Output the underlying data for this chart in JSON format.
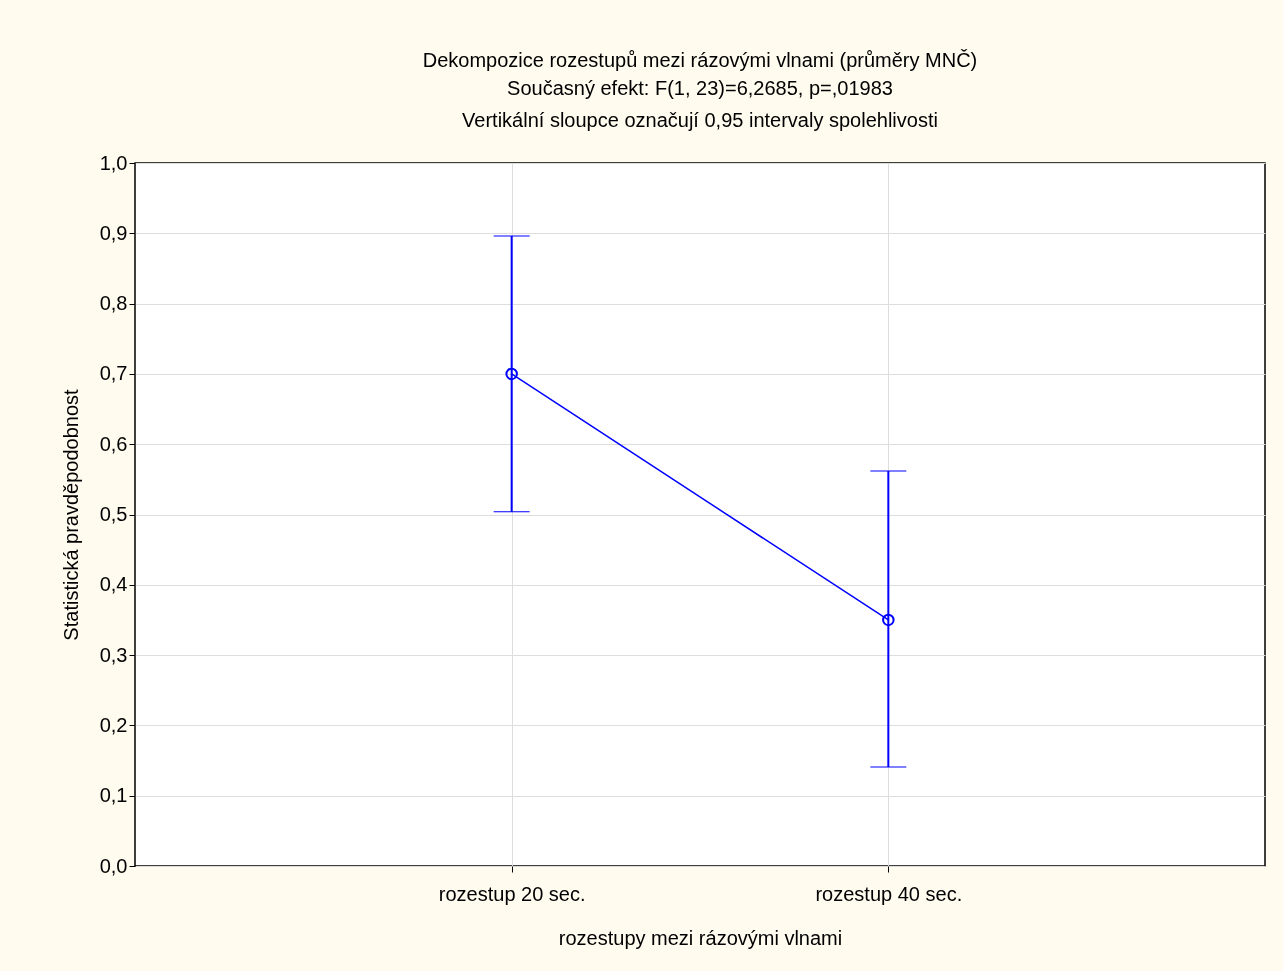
{
  "chart_data": {
    "type": "line",
    "title": "Dekompozice rozestupů mezi rázovými vlnami (průměry MNČ)",
    "subtitle": "Současný efekt: F(1, 23)=6,2685, p=,01983",
    "annotations": [
      "Vertikální sloupce označují 0,95 intervaly spolehlivosti"
    ],
    "xlabel": "rozestupy mezi rázovými vlnami",
    "ylabel": "Statistická pravděpodobnost",
    "categories": [
      "rozestup 20 sec.",
      "rozestup 40 sec."
    ],
    "series": [
      {
        "color": "#0000ff",
        "values": [
          0.7,
          0.35
        ],
        "errors": [
          [
            0.504,
            0.896
          ],
          [
            0.141,
            0.562
          ]
        ]
      }
    ],
    "ylim": [
      0,
      1
    ],
    "yticks": [
      {
        "value": 0,
        "label": "0,0"
      },
      {
        "value": 0.1,
        "label": "0,1"
      },
      {
        "value": 0.2,
        "label": "0,2"
      },
      {
        "value": 0.3,
        "label": "0,3"
      },
      {
        "value": 0.4,
        "label": "0,4"
      },
      {
        "value": 0.5,
        "label": "0,5"
      },
      {
        "value": 0.6,
        "label": "0,6"
      },
      {
        "value": 0.7,
        "label": "0,7"
      },
      {
        "value": 0.8,
        "label": "0,8"
      },
      {
        "value": 0.9,
        "label": "0,9"
      },
      {
        "value": 1,
        "label": "1,0"
      }
    ],
    "grid": true,
    "marker": "circle",
    "line_style": "solid"
  }
}
